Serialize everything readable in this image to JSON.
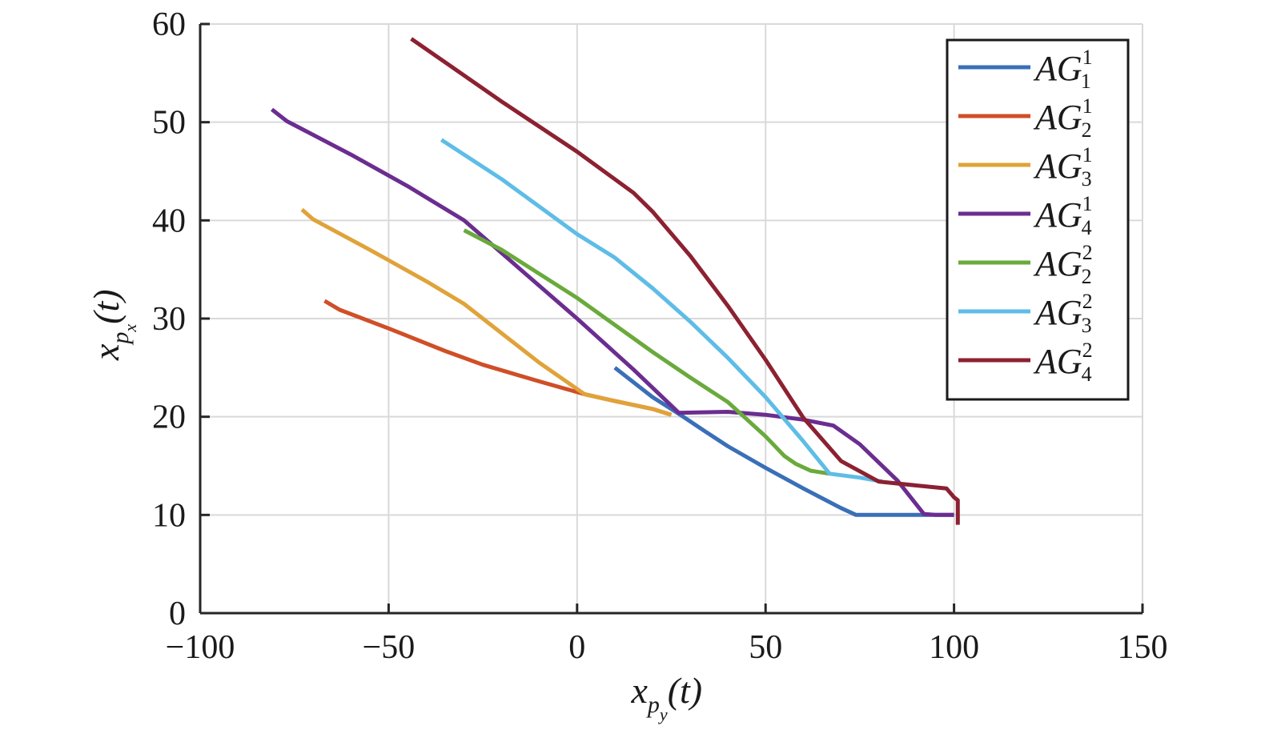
{
  "chart_data": {
    "type": "line",
    "title": "",
    "xlabel": {
      "base": "x",
      "sub": "p",
      "subsub": "y",
      "suffix": "(t)"
    },
    "ylabel": {
      "base": "x",
      "sub": "p",
      "subsub": "x",
      "suffix": "(t)"
    },
    "xlim": [
      -100,
      150
    ],
    "ylim": [
      0,
      60
    ],
    "xticks": [
      -100,
      -50,
      0,
      50,
      100,
      150
    ],
    "yticks": [
      0,
      10,
      20,
      30,
      40,
      50,
      60
    ],
    "xtick_labels": [
      "−100",
      "−50",
      "0",
      "50",
      "100",
      "150"
    ],
    "ytick_labels": [
      "0",
      "10",
      "20",
      "30",
      "40",
      "50",
      "60"
    ],
    "grid": true,
    "legend_position": "top-right",
    "series": [
      {
        "name": "AG",
        "sup": "1",
        "sub": "1",
        "color": "#3a6fb8",
        "points": [
          [
            10,
            25
          ],
          [
            20,
            22
          ],
          [
            27,
            20.3
          ],
          [
            34,
            18.5
          ],
          [
            40,
            17
          ],
          [
            50,
            14.8
          ],
          [
            60,
            12.7
          ],
          [
            70,
            10.7
          ],
          [
            74,
            10
          ],
          [
            80,
            10
          ],
          [
            90,
            10
          ],
          [
            100,
            10
          ]
        ]
      },
      {
        "name": "AG",
        "sup": "1",
        "sub": "2",
        "color": "#cf4f27",
        "points": [
          [
            -67,
            31.8
          ],
          [
            -63,
            30.9
          ],
          [
            -50,
            29
          ],
          [
            -35,
            26.7
          ],
          [
            -25,
            25.3
          ],
          [
            -10,
            23.6
          ],
          [
            2,
            22.3
          ],
          [
            10,
            21.6
          ],
          [
            20,
            20.8
          ],
          [
            25,
            20.2
          ]
        ]
      },
      {
        "name": "AG",
        "sup": "1",
        "sub": "3",
        "color": "#e0a33a",
        "points": [
          [
            -73,
            41.1
          ],
          [
            -70,
            40.1
          ],
          [
            -55,
            37
          ],
          [
            -40,
            33.8
          ],
          [
            -30,
            31.5
          ],
          [
            -20,
            28.5
          ],
          [
            -10,
            25.5
          ],
          [
            2,
            22.3
          ],
          [
            10,
            21.6
          ],
          [
            20,
            20.8
          ],
          [
            25,
            20.2
          ]
        ]
      },
      {
        "name": "AG",
        "sup": "1",
        "sub": "4",
        "color": "#6b2d90",
        "points": [
          [
            -81,
            51.3
          ],
          [
            -77,
            50.1
          ],
          [
            -60,
            46.7
          ],
          [
            -45,
            43.5
          ],
          [
            -30,
            40
          ],
          [
            -15,
            35
          ],
          [
            0,
            30
          ],
          [
            15,
            24.8
          ],
          [
            27,
            20.4
          ],
          [
            40,
            20.5
          ],
          [
            50,
            20.2
          ],
          [
            60,
            19.7
          ],
          [
            68,
            19.1
          ],
          [
            75,
            17.2
          ],
          [
            85,
            13.5
          ],
          [
            92,
            10.1
          ],
          [
            95,
            10
          ],
          [
            100,
            10
          ]
        ]
      },
      {
        "name": "AG",
        "sup": "2",
        "sub": "2",
        "color": "#6aaa3c",
        "points": [
          [
            -30,
            39
          ],
          [
            -20,
            37
          ],
          [
            0,
            32.1
          ],
          [
            20,
            26.6
          ],
          [
            30,
            24
          ],
          [
            40,
            21.5
          ],
          [
            50,
            18
          ],
          [
            55,
            16
          ],
          [
            58,
            15.2
          ],
          [
            62,
            14.5
          ],
          [
            67,
            14.2
          ]
        ]
      },
      {
        "name": "AG",
        "sup": "2",
        "sub": "3",
        "color": "#5ebde6",
        "points": [
          [
            -36,
            48.2
          ],
          [
            -20,
            44.2
          ],
          [
            0,
            38.6
          ],
          [
            10,
            36.2
          ],
          [
            20,
            33.1
          ],
          [
            30,
            29.7
          ],
          [
            40,
            26
          ],
          [
            50,
            22
          ],
          [
            60,
            17.5
          ],
          [
            67,
            14.2
          ],
          [
            75,
            13.8
          ],
          [
            81,
            13.4
          ]
        ]
      },
      {
        "name": "AG",
        "sup": "2",
        "sub": "4",
        "color": "#8c2131",
        "points": [
          [
            -44,
            58.5
          ],
          [
            -35,
            56.1
          ],
          [
            -20,
            52.1
          ],
          [
            0,
            47
          ],
          [
            15,
            42.8
          ],
          [
            20,
            40.9
          ],
          [
            30,
            36.4
          ],
          [
            40,
            31.3
          ],
          [
            50,
            25.8
          ],
          [
            60,
            19.9
          ],
          [
            70,
            15.5
          ],
          [
            80,
            13.4
          ],
          [
            90,
            13
          ],
          [
            98,
            12.7
          ],
          [
            100,
            11.8
          ],
          [
            101,
            11.5
          ],
          [
            101,
            9
          ]
        ]
      }
    ]
  }
}
